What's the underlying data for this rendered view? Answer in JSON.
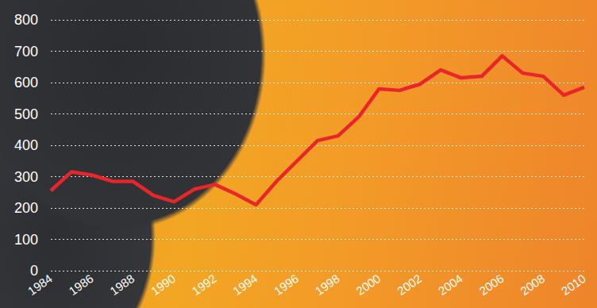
{
  "chart_data": {
    "type": "line",
    "categories": [
      "1984",
      null,
      "1986",
      null,
      "1988",
      null,
      "1990",
      null,
      "1992",
      null,
      "1994",
      null,
      "1996",
      null,
      "1998",
      null,
      "2000",
      null,
      "2002",
      null,
      "2004",
      null,
      "2006",
      null,
      "2008",
      null,
      "2010"
    ],
    "values": [
      255,
      315,
      305,
      285,
      285,
      240,
      220,
      260,
      275,
      245,
      210,
      285,
      350,
      415,
      430,
      490,
      580,
      575,
      595,
      640,
      615,
      620,
      685,
      630,
      620,
      560,
      585
    ],
    "color": "#e8262a",
    "ylim": [
      0,
      800
    ],
    "yticks": [
      0,
      100,
      200,
      300,
      400,
      500,
      600,
      700,
      800
    ],
    "grid": true
  }
}
